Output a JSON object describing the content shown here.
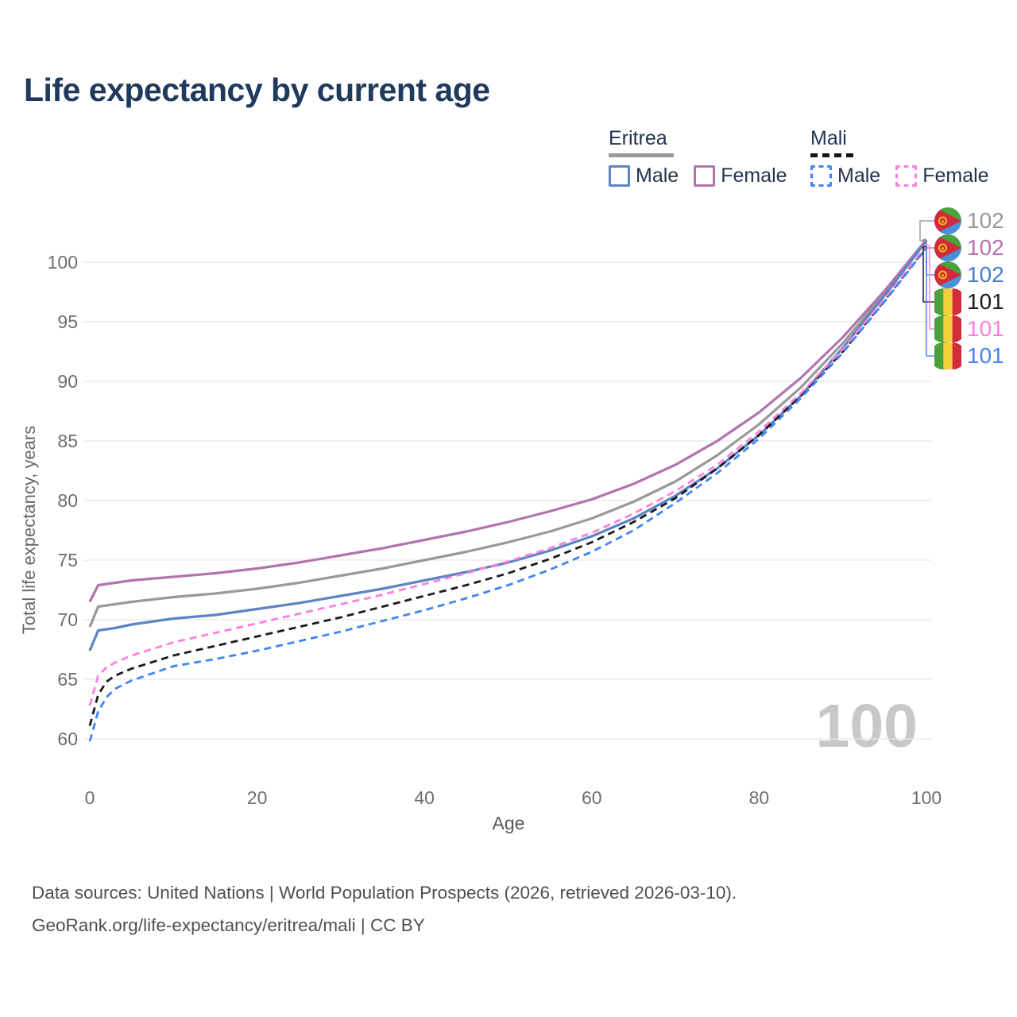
{
  "title": "Life expectancy by current age",
  "legend": {
    "groups": [
      {
        "country": "Eritrea",
        "line_style": "solid",
        "line_color": "#999999",
        "items": [
          {
            "label": "Male",
            "color": "#5b84c4"
          },
          {
            "label": "Female",
            "color": "#b273ae"
          }
        ]
      },
      {
        "country": "Mali",
        "line_style": "dashed",
        "line_color": "#141414",
        "items": [
          {
            "label": "Male",
            "color": "#4285f4"
          },
          {
            "label": "Female",
            "color": "#ff80df"
          }
        ]
      }
    ]
  },
  "watermark": "100",
  "end_labels": [
    {
      "value": "102",
      "color": "#999999",
      "flag": "eritrea"
    },
    {
      "value": "102",
      "color": "#b273ae",
      "flag": "eritrea"
    },
    {
      "value": "102",
      "color": "#4a7dc9",
      "flag": "eritrea"
    },
    {
      "value": "101",
      "color": "#1a1a1a",
      "flag": "mali"
    },
    {
      "value": "101",
      "color": "#ff80df",
      "flag": "mali"
    },
    {
      "value": "101",
      "color": "#4285f4",
      "flag": "mali"
    }
  ],
  "footer": {
    "line1": "Data sources: United Nations | World Population Prospects (2026, retrieved 2026-03-10).",
    "line2": "GeoRank.org/life-expectancy/eritrea/mali | CC BY"
  },
  "chart_data": {
    "type": "line",
    "title": "Life expectancy by current age",
    "xlabel": "Age",
    "ylabel": "Total life expectancy, years",
    "xlim": [
      0,
      100
    ],
    "ylim": [
      58,
      103
    ],
    "xticks": [
      0,
      20,
      40,
      60,
      80,
      100
    ],
    "yticks": [
      60,
      65,
      70,
      75,
      80,
      85,
      90,
      95,
      100
    ],
    "grid": true,
    "legend_position": "top-right",
    "x": [
      0,
      1,
      2,
      3,
      5,
      10,
      15,
      20,
      25,
      30,
      35,
      40,
      45,
      50,
      55,
      60,
      65,
      70,
      75,
      80,
      85,
      90,
      95,
      100
    ],
    "series": [
      {
        "name": "Eritrea Both sexes",
        "color": "#999999",
        "dash": "solid",
        "end_label": "102",
        "values": [
          69.4,
          71.1,
          71.2,
          71.3,
          71.5,
          71.9,
          72.2,
          72.6,
          73.1,
          73.7,
          74.3,
          75.0,
          75.7,
          76.5,
          77.4,
          78.5,
          79.9,
          81.6,
          83.8,
          86.4,
          89.5,
          93.2,
          97.4,
          101.8
        ]
      },
      {
        "name": "Eritrea Female",
        "color": "#b273ae",
        "dash": "solid",
        "end_label": "102",
        "values": [
          71.5,
          72.9,
          73.0,
          73.1,
          73.3,
          73.6,
          73.9,
          74.3,
          74.8,
          75.4,
          76.0,
          76.7,
          77.4,
          78.2,
          79.1,
          80.1,
          81.4,
          83.0,
          85.0,
          87.4,
          90.3,
          93.7,
          97.6,
          101.9
        ]
      },
      {
        "name": "Eritrea Male",
        "color": "#5b84c4",
        "dash": "solid",
        "end_label": "102",
        "values": [
          67.4,
          69.1,
          69.2,
          69.3,
          69.6,
          70.1,
          70.4,
          70.9,
          71.4,
          72.0,
          72.6,
          73.3,
          74.0,
          74.8,
          75.8,
          77.0,
          78.5,
          80.4,
          82.7,
          85.5,
          88.8,
          92.8,
          97.2,
          101.8
        ]
      },
      {
        "name": "Mali Both sexes",
        "color": "#1a1a1a",
        "dash": "dashed",
        "end_label": "101",
        "values": [
          61.1,
          63.7,
          64.8,
          65.3,
          65.9,
          67.0,
          67.8,
          68.6,
          69.4,
          70.2,
          71.1,
          72.0,
          72.9,
          73.9,
          75.1,
          76.5,
          78.2,
          80.2,
          82.7,
          85.5,
          88.8,
          92.5,
          96.8,
          101.3
        ]
      },
      {
        "name": "Mali Female",
        "color": "#ff80df",
        "dash": "dashed",
        "end_label": "101",
        "values": [
          62.8,
          65.3,
          66.0,
          66.4,
          67.0,
          68.1,
          68.9,
          69.7,
          70.5,
          71.3,
          72.1,
          73.0,
          73.9,
          74.9,
          76.0,
          77.3,
          78.9,
          80.8,
          83.0,
          85.8,
          89.0,
          92.7,
          96.9,
          101.4
        ]
      },
      {
        "name": "Mali Male",
        "color": "#4285f4",
        "dash": "dashed",
        "end_label": "101",
        "values": [
          59.8,
          62.3,
          63.5,
          64.2,
          64.9,
          66.1,
          66.7,
          67.4,
          68.2,
          69.0,
          69.9,
          70.8,
          71.8,
          72.9,
          74.2,
          75.7,
          77.5,
          79.8,
          82.3,
          85.2,
          88.6,
          92.4,
          96.7,
          101.2
        ]
      }
    ]
  }
}
